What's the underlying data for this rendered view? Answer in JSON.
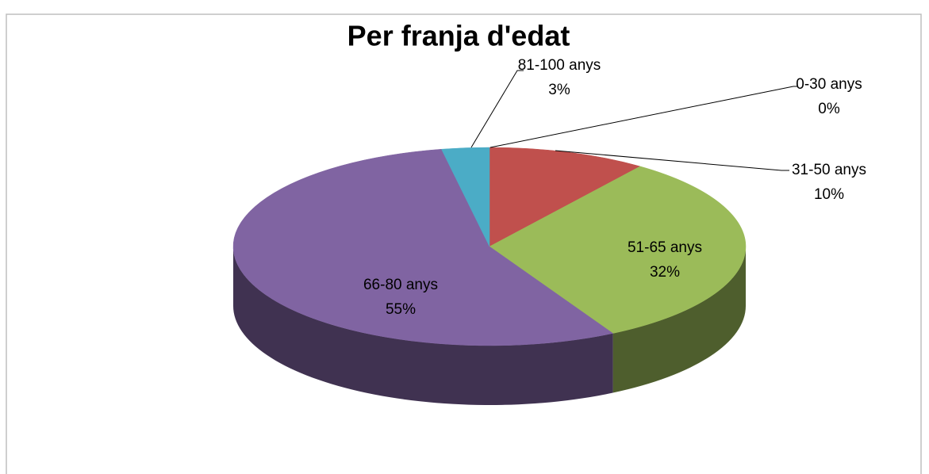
{
  "chart_data": {
    "type": "pie",
    "title": "Per franja d'edat",
    "categories": [
      "0-30 anys",
      "31-50 anys",
      "51-65 anys",
      "66-80 anys",
      "81-100 anys"
    ],
    "values": [
      0,
      10,
      32,
      55,
      3
    ],
    "value_labels": [
      "0%",
      "10%",
      "32%",
      "55%",
      "3%"
    ],
    "colors": [
      "#4f81bd",
      "#c0504d",
      "#9bbb59",
      "#8064a2",
      "#4bacc6"
    ]
  }
}
